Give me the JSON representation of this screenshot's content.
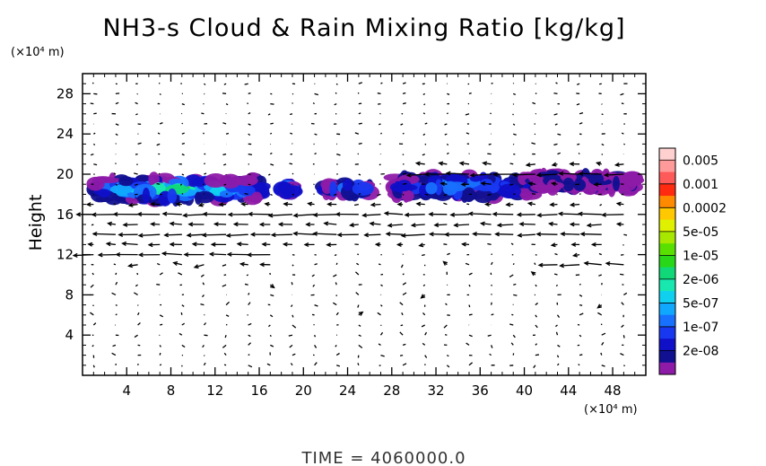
{
  "chart_data": {
    "type": "heatmap",
    "title": "NH3-s Cloud & Rain Mixing Ratio [kg/kg]",
    "ylabel": "Height",
    "x_unit": "(×10⁴ m)",
    "y_unit": "(×10⁴ m)",
    "xlim": [
      0,
      51
    ],
    "ylim": [
      0,
      30
    ],
    "x_ticks": [
      "4",
      "8",
      "12",
      "16",
      "20",
      "24",
      "28",
      "32",
      "36",
      "40",
      "44",
      "48"
    ],
    "y_ticks": [
      "4",
      "8",
      "12",
      "16",
      "20",
      "24",
      "28"
    ],
    "time_label": "TIME = 4060000.0",
    "colorbar": {
      "labels": [
        "0.005",
        "0.001",
        "0.0002",
        "5e-05",
        "1e-05",
        "2e-06",
        "5e-07",
        "1e-07",
        "2e-08"
      ],
      "colors": [
        "#ffd0d0",
        "#ff9a9a",
        "#ff5a5a",
        "#ff2a10",
        "#ff8a00",
        "#ffc800",
        "#dff000",
        "#a8e800",
        "#5ae000",
        "#28d818",
        "#10d878",
        "#18e8b0",
        "#10d0f0",
        "#10a8ff",
        "#1870ff",
        "#1838f0",
        "#1010c8",
        "#101090",
        "#8e1aa8"
      ]
    },
    "cloud_regions": [
      {
        "x": [
          1.0,
          16.5
        ],
        "y": [
          17.5,
          19.5
        ],
        "peak": "1e-05"
      },
      {
        "x": [
          18.0,
          19.0
        ],
        "y": [
          18.0,
          19.0
        ],
        "peak": "5e-07"
      },
      {
        "x": [
          22.0,
          26.0
        ],
        "y": [
          18.0,
          19.0
        ],
        "peak": "5e-07"
      },
      {
        "x": [
          28.0,
          41.0
        ],
        "y": [
          17.8,
          19.8
        ],
        "peak": "5e-07"
      },
      {
        "x": [
          41.0,
          50.0
        ],
        "y": [
          18.5,
          20.0
        ],
        "peak": "2e-08"
      }
    ],
    "wind_jets": [
      {
        "y": 16,
        "x": [
          1,
          50
        ]
      },
      {
        "y": 14,
        "x": [
          2,
          48
        ]
      },
      {
        "y": 12,
        "x": [
          1,
          17
        ]
      },
      {
        "y": 11,
        "x": [
          42,
          50
        ]
      },
      {
        "y": 20,
        "x": [
          30,
          50
        ]
      }
    ]
  }
}
